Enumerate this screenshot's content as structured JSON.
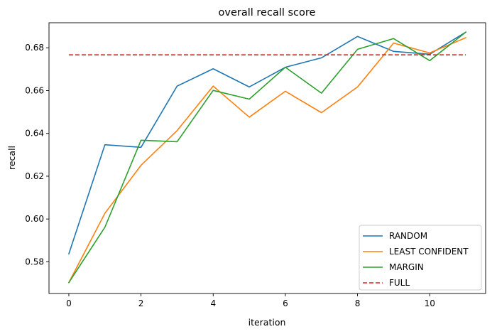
{
  "chart_data": {
    "type": "line",
    "title": "overall recall score",
    "xlabel": "iteration",
    "ylabel": "recall",
    "x": [
      0,
      1,
      2,
      3,
      4,
      5,
      6,
      7,
      8,
      9,
      10,
      11
    ],
    "xlim": [
      -0.55,
      11.55
    ],
    "ylim": [
      0.5652,
      0.6917
    ],
    "xticks": [
      0,
      2,
      4,
      6,
      8,
      10
    ],
    "yticks": [
      0.58,
      0.6,
      0.62,
      0.64,
      0.66,
      0.68
    ],
    "ytick_labels": [
      "0.58",
      "0.60",
      "0.62",
      "0.64",
      "0.66",
      "0.68"
    ],
    "grid": false,
    "legend_position": "lower-right",
    "series": [
      {
        "name": "RANDOM",
        "color": "#1f77b4",
        "style": "solid",
        "values": [
          0.5837,
          0.6347,
          0.6335,
          0.6621,
          0.6702,
          0.6617,
          0.6709,
          0.6753,
          0.6853,
          0.6783,
          0.677,
          0.6873
        ]
      },
      {
        "name": "LEAST CONFIDENT",
        "color": "#ff7f0e",
        "style": "solid",
        "values": [
          0.5703,
          0.6027,
          0.6251,
          0.6413,
          0.6621,
          0.6476,
          0.6597,
          0.6497,
          0.6617,
          0.6822,
          0.6776,
          0.6847
        ]
      },
      {
        "name": "MARGIN",
        "color": "#2ca02c",
        "style": "solid",
        "values": [
          0.5703,
          0.5962,
          0.6368,
          0.6361,
          0.6601,
          0.656,
          0.6709,
          0.6588,
          0.6793,
          0.6843,
          0.674,
          0.6873
        ]
      },
      {
        "name": "FULL",
        "color": "#d62728",
        "style": "dashed",
        "values": [
          0.6767,
          0.6767,
          0.6767,
          0.6767,
          0.6767,
          0.6767,
          0.6767,
          0.6767,
          0.6767,
          0.6767,
          0.6767,
          0.6767
        ]
      }
    ]
  }
}
